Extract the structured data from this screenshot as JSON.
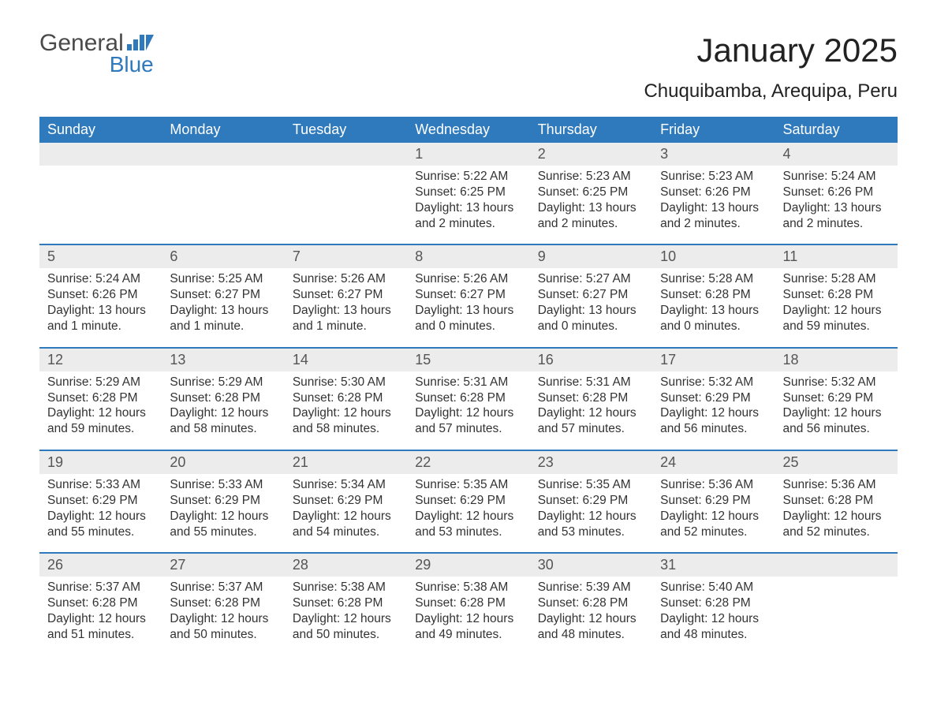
{
  "logo": {
    "text1": "General",
    "text2": "Blue"
  },
  "title": "January 2025",
  "subtitle": "Chuquibamba, Arequipa, Peru",
  "colors": {
    "header_bg": "#2f79bd",
    "header_text": "#ffffff",
    "daynum_bg": "#ececec",
    "week_border": "#2f79bd",
    "body_text": "#333333",
    "logo_gray": "#4a4a4a",
    "logo_blue": "#2f79bd",
    "page_bg": "#ffffff"
  },
  "typography": {
    "title_fontsize": 42,
    "subtitle_fontsize": 24,
    "dow_fontsize": 18,
    "daynum_fontsize": 18,
    "body_fontsize": 15.5,
    "font_family": "Arial"
  },
  "days_of_week": [
    "Sunday",
    "Monday",
    "Tuesday",
    "Wednesday",
    "Thursday",
    "Friday",
    "Saturday"
  ],
  "weeks": [
    [
      {
        "n": "",
        "sr": "",
        "ss": "",
        "dl": ""
      },
      {
        "n": "",
        "sr": "",
        "ss": "",
        "dl": ""
      },
      {
        "n": "",
        "sr": "",
        "ss": "",
        "dl": ""
      },
      {
        "n": "1",
        "sr": "Sunrise: 5:22 AM",
        "ss": "Sunset: 6:25 PM",
        "dl": "Daylight: 13 hours and 2 minutes."
      },
      {
        "n": "2",
        "sr": "Sunrise: 5:23 AM",
        "ss": "Sunset: 6:25 PM",
        "dl": "Daylight: 13 hours and 2 minutes."
      },
      {
        "n": "3",
        "sr": "Sunrise: 5:23 AM",
        "ss": "Sunset: 6:26 PM",
        "dl": "Daylight: 13 hours and 2 minutes."
      },
      {
        "n": "4",
        "sr": "Sunrise: 5:24 AM",
        "ss": "Sunset: 6:26 PM",
        "dl": "Daylight: 13 hours and 2 minutes."
      }
    ],
    [
      {
        "n": "5",
        "sr": "Sunrise: 5:24 AM",
        "ss": "Sunset: 6:26 PM",
        "dl": "Daylight: 13 hours and 1 minute."
      },
      {
        "n": "6",
        "sr": "Sunrise: 5:25 AM",
        "ss": "Sunset: 6:27 PM",
        "dl": "Daylight: 13 hours and 1 minute."
      },
      {
        "n": "7",
        "sr": "Sunrise: 5:26 AM",
        "ss": "Sunset: 6:27 PM",
        "dl": "Daylight: 13 hours and 1 minute."
      },
      {
        "n": "8",
        "sr": "Sunrise: 5:26 AM",
        "ss": "Sunset: 6:27 PM",
        "dl": "Daylight: 13 hours and 0 minutes."
      },
      {
        "n": "9",
        "sr": "Sunrise: 5:27 AM",
        "ss": "Sunset: 6:27 PM",
        "dl": "Daylight: 13 hours and 0 minutes."
      },
      {
        "n": "10",
        "sr": "Sunrise: 5:28 AM",
        "ss": "Sunset: 6:28 PM",
        "dl": "Daylight: 13 hours and 0 minutes."
      },
      {
        "n": "11",
        "sr": "Sunrise: 5:28 AM",
        "ss": "Sunset: 6:28 PM",
        "dl": "Daylight: 12 hours and 59 minutes."
      }
    ],
    [
      {
        "n": "12",
        "sr": "Sunrise: 5:29 AM",
        "ss": "Sunset: 6:28 PM",
        "dl": "Daylight: 12 hours and 59 minutes."
      },
      {
        "n": "13",
        "sr": "Sunrise: 5:29 AM",
        "ss": "Sunset: 6:28 PM",
        "dl": "Daylight: 12 hours and 58 minutes."
      },
      {
        "n": "14",
        "sr": "Sunrise: 5:30 AM",
        "ss": "Sunset: 6:28 PM",
        "dl": "Daylight: 12 hours and 58 minutes."
      },
      {
        "n": "15",
        "sr": "Sunrise: 5:31 AM",
        "ss": "Sunset: 6:28 PM",
        "dl": "Daylight: 12 hours and 57 minutes."
      },
      {
        "n": "16",
        "sr": "Sunrise: 5:31 AM",
        "ss": "Sunset: 6:28 PM",
        "dl": "Daylight: 12 hours and 57 minutes."
      },
      {
        "n": "17",
        "sr": "Sunrise: 5:32 AM",
        "ss": "Sunset: 6:29 PM",
        "dl": "Daylight: 12 hours and 56 minutes."
      },
      {
        "n": "18",
        "sr": "Sunrise: 5:32 AM",
        "ss": "Sunset: 6:29 PM",
        "dl": "Daylight: 12 hours and 56 minutes."
      }
    ],
    [
      {
        "n": "19",
        "sr": "Sunrise: 5:33 AM",
        "ss": "Sunset: 6:29 PM",
        "dl": "Daylight: 12 hours and 55 minutes."
      },
      {
        "n": "20",
        "sr": "Sunrise: 5:33 AM",
        "ss": "Sunset: 6:29 PM",
        "dl": "Daylight: 12 hours and 55 minutes."
      },
      {
        "n": "21",
        "sr": "Sunrise: 5:34 AM",
        "ss": "Sunset: 6:29 PM",
        "dl": "Daylight: 12 hours and 54 minutes."
      },
      {
        "n": "22",
        "sr": "Sunrise: 5:35 AM",
        "ss": "Sunset: 6:29 PM",
        "dl": "Daylight: 12 hours and 53 minutes."
      },
      {
        "n": "23",
        "sr": "Sunrise: 5:35 AM",
        "ss": "Sunset: 6:29 PM",
        "dl": "Daylight: 12 hours and 53 minutes."
      },
      {
        "n": "24",
        "sr": "Sunrise: 5:36 AM",
        "ss": "Sunset: 6:29 PM",
        "dl": "Daylight: 12 hours and 52 minutes."
      },
      {
        "n": "25",
        "sr": "Sunrise: 5:36 AM",
        "ss": "Sunset: 6:28 PM",
        "dl": "Daylight: 12 hours and 52 minutes."
      }
    ],
    [
      {
        "n": "26",
        "sr": "Sunrise: 5:37 AM",
        "ss": "Sunset: 6:28 PM",
        "dl": "Daylight: 12 hours and 51 minutes."
      },
      {
        "n": "27",
        "sr": "Sunrise: 5:37 AM",
        "ss": "Sunset: 6:28 PM",
        "dl": "Daylight: 12 hours and 50 minutes."
      },
      {
        "n": "28",
        "sr": "Sunrise: 5:38 AM",
        "ss": "Sunset: 6:28 PM",
        "dl": "Daylight: 12 hours and 50 minutes."
      },
      {
        "n": "29",
        "sr": "Sunrise: 5:38 AM",
        "ss": "Sunset: 6:28 PM",
        "dl": "Daylight: 12 hours and 49 minutes."
      },
      {
        "n": "30",
        "sr": "Sunrise: 5:39 AM",
        "ss": "Sunset: 6:28 PM",
        "dl": "Daylight: 12 hours and 48 minutes."
      },
      {
        "n": "31",
        "sr": "Sunrise: 5:40 AM",
        "ss": "Sunset: 6:28 PM",
        "dl": "Daylight: 12 hours and 48 minutes."
      },
      {
        "n": "",
        "sr": "",
        "ss": "",
        "dl": ""
      }
    ]
  ]
}
